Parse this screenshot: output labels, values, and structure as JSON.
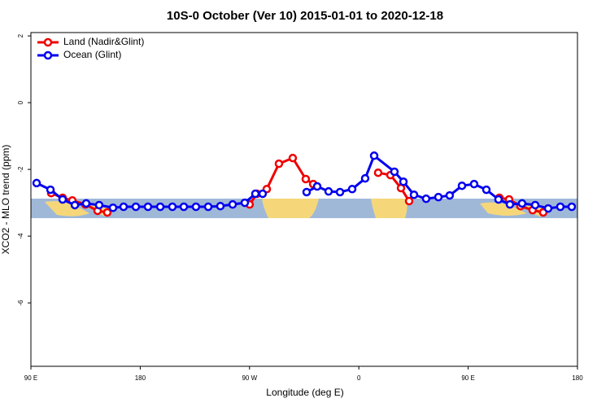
{
  "chart_data": {
    "type": "line",
    "title": "10S-0 October (Ver 10)   2015-01-01 to 2020-12-18",
    "x_label": "Longitude (deg E)",
    "y_label": "XCO2 - MLO trend (ppm)",
    "xlim": [
      90,
      540
    ],
    "ylim": [
      -7.9,
      2.1
    ],
    "xticks": [
      {
        "value": 90,
        "label": "90 E"
      },
      180,
      {
        "value": 270,
        "label": "90 W"
      },
      {
        "value": 360,
        "label": "0"
      },
      {
        "value": 450,
        "label": "90 E"
      },
      {
        "value": 540,
        "label": "180"
      }
    ],
    "yticks": [
      2,
      0,
      -2,
      -4,
      -6
    ],
    "legend": "top-left",
    "series": [
      {
        "name": "Land (Nadir&Glint)",
        "color": "#ee0000",
        "x": [
          106.7,
          116.1,
          124.1,
          134.9,
          144.9,
          152.9,
          null,
          270.1,
          276.1,
          284.2,
          294.2,
          305.6,
          316.3,
          322.4,
          null,
          375.9,
          386.0,
          394.7,
          401.4,
          null,
          475.7,
          483.7,
          493.1,
          503.1,
          511.8
        ],
        "values": [
          -2.71,
          -2.85,
          -2.93,
          -3.05,
          -3.24,
          -3.29,
          null,
          -3.05,
          -2.73,
          -2.59,
          -1.83,
          -1.66,
          -2.29,
          -2.44,
          null,
          -2.1,
          -2.17,
          -2.56,
          -2.95,
          null,
          -2.85,
          -2.9,
          -3.1,
          -3.22,
          -3.29
        ]
      },
      {
        "name": "Ocean (Glint)",
        "color": "#0000ee",
        "x": [
          94.7,
          106.1,
          116.1,
          126.2,
          135.5,
          146.2,
          157.6,
          166.3,
          176.4,
          186.4,
          196.5,
          206.5,
          215.9,
          225.9,
          236.0,
          246.0,
          256.1,
          266.1,
          274.8,
          280.8,
          null,
          317.0,
          325.7,
          335.1,
          344.5,
          354.5,
          365.2,
          372.6,
          389.3,
          396.7,
          405.4,
          415.4,
          425.5,
          434.8,
          444.9,
          454.9,
          465.0,
          475.0,
          484.4,
          494.4,
          505.2,
          515.9,
          525.9,
          535.3
        ],
        "values": [
          -2.41,
          -2.61,
          -2.9,
          -3.07,
          -3.02,
          -3.07,
          -3.15,
          -3.12,
          -3.12,
          -3.12,
          -3.12,
          -3.12,
          -3.12,
          -3.12,
          -3.12,
          -3.1,
          -3.05,
          -3.0,
          -2.73,
          -2.73,
          null,
          -2.68,
          -2.51,
          -2.66,
          -2.68,
          -2.59,
          -2.27,
          -1.59,
          -2.07,
          -2.37,
          -2.76,
          -2.88,
          -2.83,
          -2.78,
          -2.49,
          -2.44,
          -2.61,
          -2.9,
          -3.05,
          -3.02,
          -3.07,
          -3.17,
          -3.12,
          -3.12
        ]
      }
    ]
  }
}
